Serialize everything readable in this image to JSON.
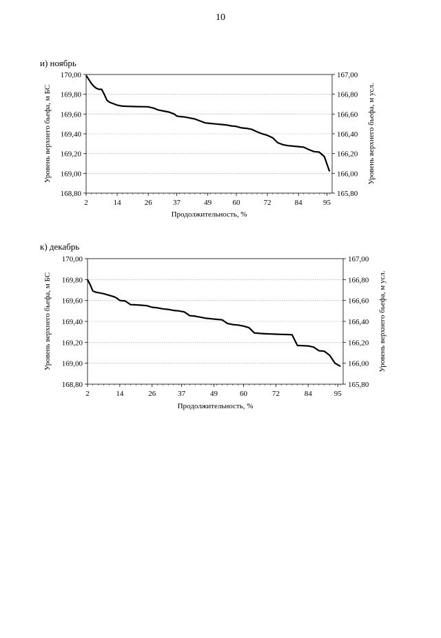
{
  "page": {
    "number": "10"
  },
  "chart_data": [
    {
      "type": "line",
      "title": "и) ноябрь",
      "xlabel": "Продолжительность, %",
      "ylabel": "Уровень верхнего бьефа, м БС",
      "ylabel_right": "Уровень верхнего бьефа, м  усл.",
      "ylim": [
        168.8,
        170.0
      ],
      "ylim_right": [
        165.8,
        167.0
      ],
      "xlim": [
        2,
        97
      ],
      "y_ticks": [
        "170,00",
        "169,80",
        "169,60",
        "169,40",
        "169,20",
        "169,00",
        "168,80"
      ],
      "y_ticks_right": [
        "167,00",
        "166,80",
        "166,60",
        "166,40",
        "166,20",
        "166,00",
        "165,80"
      ],
      "x_ticks": [
        "2",
        "14",
        "26",
        "37",
        "49",
        "60",
        "72",
        "84",
        "95"
      ],
      "x_tick_values": [
        2,
        14,
        26,
        37,
        49,
        60,
        72,
        84,
        95
      ],
      "series": [
        {
          "name": "ноябрь",
          "x": [
            2,
            3,
            4,
            5,
            6,
            7,
            8,
            9,
            10,
            11,
            12,
            13,
            14,
            15,
            16,
            18,
            20,
            22,
            24,
            26,
            28,
            30,
            32,
            34,
            36,
            37,
            38,
            40,
            42,
            44,
            46,
            48,
            50,
            52,
            54,
            56,
            58,
            60,
            62,
            64,
            66,
            68,
            70,
            72,
            74,
            76,
            78,
            80,
            82,
            84,
            86,
            88,
            90,
            92,
            94,
            96
          ],
          "values": [
            169.99,
            169.95,
            169.91,
            169.88,
            169.86,
            169.85,
            169.85,
            169.8,
            169.74,
            169.72,
            169.71,
            169.7,
            169.69,
            169.685,
            169.68,
            169.678,
            169.676,
            169.675,
            169.674,
            169.673,
            169.66,
            169.64,
            169.63,
            169.62,
            169.6,
            169.58,
            169.575,
            169.57,
            169.56,
            169.55,
            169.53,
            169.51,
            169.505,
            169.5,
            169.495,
            169.49,
            169.48,
            169.475,
            169.46,
            169.455,
            169.445,
            169.42,
            169.4,
            169.385,
            169.36,
            169.31,
            169.29,
            169.28,
            169.275,
            169.27,
            169.265,
            169.24,
            169.22,
            169.215,
            169.17,
            169.02
          ]
        }
      ]
    },
    {
      "type": "line",
      "title": "к) декабрь",
      "xlabel": "Продолжительность, %",
      "ylabel": "Уровень верхнего бьефа, м БС",
      "ylabel_right": "Уровень верхнего бьефа, м  усл.",
      "ylim": [
        168.8,
        170.0
      ],
      "ylim_right": [
        165.8,
        167.0
      ],
      "xlim": [
        2,
        97
      ],
      "y_ticks": [
        "170,00",
        "169,80",
        "169,60",
        "169,40",
        "169,20",
        "169,00",
        "168,80"
      ],
      "y_ticks_right": [
        "167,00",
        "166,80",
        "166,60",
        "166,40",
        "166,20",
        "166,00",
        "165,80"
      ],
      "x_ticks": [
        "2",
        "14",
        "26",
        "37",
        "49",
        "60",
        "72",
        "84",
        "95"
      ],
      "x_tick_values": [
        2,
        14,
        26,
        37,
        49,
        60,
        72,
        84,
        95
      ],
      "series": [
        {
          "name": "декабрь",
          "x": [
            2,
            3,
            4,
            5,
            6,
            8,
            10,
            12,
            13,
            14,
            15,
            16,
            18,
            20,
            22,
            24,
            26,
            28,
            30,
            32,
            34,
            36,
            38,
            40,
            42,
            44,
            46,
            48,
            50,
            52,
            54,
            56,
            58,
            60,
            62,
            64,
            66,
            68,
            70,
            72,
            74,
            76,
            78,
            80,
            82,
            84,
            86,
            88,
            90,
            92,
            94,
            96
          ],
          "values": [
            169.8,
            169.75,
            169.69,
            169.68,
            169.675,
            169.665,
            169.65,
            169.635,
            169.62,
            169.6,
            169.598,
            169.595,
            169.56,
            169.558,
            169.555,
            169.55,
            169.535,
            169.53,
            169.52,
            169.515,
            169.505,
            169.5,
            169.49,
            169.455,
            169.45,
            169.44,
            169.43,
            169.425,
            169.42,
            169.415,
            169.38,
            169.37,
            169.365,
            169.355,
            169.34,
            169.29,
            169.285,
            169.282,
            169.28,
            169.278,
            169.276,
            169.275,
            169.273,
            169.17,
            169.168,
            169.165,
            169.155,
            169.12,
            169.115,
            169.075,
            169.0,
            168.97
          ]
        }
      ]
    }
  ]
}
